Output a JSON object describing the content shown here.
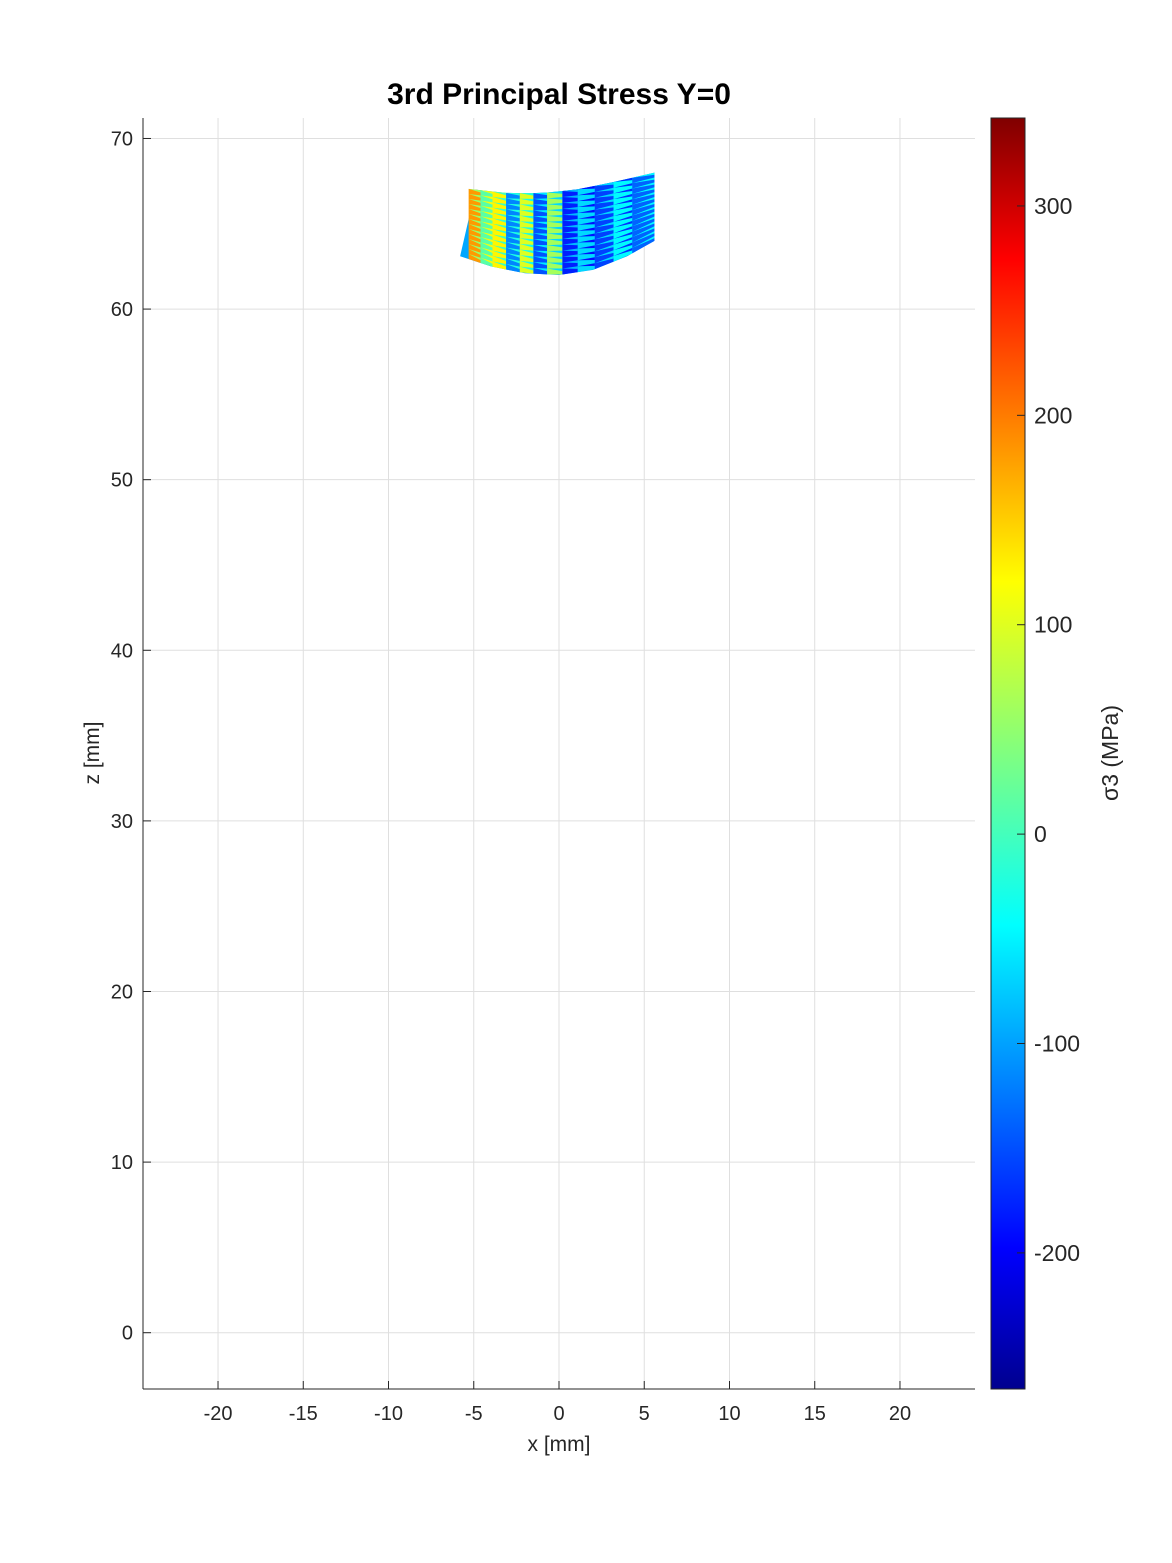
{
  "chart_data": {
    "type": "heatmap",
    "title": "3rd Principal Stress Y=0",
    "xlabel": "x [mm]",
    "ylabel": "z [mm]",
    "xlim": [
      -24.4,
      24.4
    ],
    "ylim": [
      -3.3,
      71.2
    ],
    "xticks": [
      -20,
      -15,
      -10,
      -5,
      0,
      5,
      10,
      15,
      20
    ],
    "yticks": [
      0,
      10,
      20,
      30,
      40,
      50,
      60,
      70
    ],
    "xtick_labels": [
      "-20",
      "-15",
      "-10",
      "-5",
      "0",
      "5",
      "10",
      "15",
      "20"
    ],
    "ytick_labels": [
      "0",
      "10",
      "20",
      "30",
      "40",
      "50",
      "60",
      "70"
    ],
    "grid": true,
    "colormap": "jet",
    "colorbar": {
      "label": "σ3 (MPa)",
      "range": [
        -265,
        342
      ],
      "ticks": [
        -200,
        -100,
        0,
        100,
        200,
        300
      ],
      "tick_labels": [
        "-200",
        "-100",
        "0",
        "100",
        "200",
        "300"
      ]
    },
    "region": {
      "top_edge": [
        [
          -4.9,
          67.0
        ],
        [
          -3.0,
          66.8
        ],
        [
          -1.0,
          66.8
        ],
        [
          1.0,
          67.0
        ],
        [
          3.0,
          67.4
        ],
        [
          4.3,
          67.7
        ]
      ],
      "bottom_edge": [
        [
          -5.8,
          63.1
        ],
        [
          -4.0,
          62.5
        ],
        [
          -2.0,
          62.1
        ],
        [
          0.0,
          62.0
        ],
        [
          2.0,
          62.3
        ],
        [
          4.0,
          63.1
        ],
        [
          5.6,
          64.0
        ]
      ],
      "columns": [
        {
          "x": [
            -5.3,
            -4.6
          ],
          "sigma3": 175
        },
        {
          "x": [
            -4.6,
            -3.9
          ],
          "sigma3": 15
        },
        {
          "x": [
            -3.9,
            -3.1
          ],
          "sigma3": 120
        },
        {
          "x": [
            -3.1,
            -2.3
          ],
          "sigma3": -110
        },
        {
          "x": [
            -2.3,
            -1.5
          ],
          "sigma3": 95
        },
        {
          "x": [
            -1.5,
            -0.7
          ],
          "sigma3": -140
        },
        {
          "x": [
            -0.7,
            0.2
          ],
          "sigma3": 60
        },
        {
          "x": [
            0.2,
            1.1
          ],
          "sigma3": -170
        },
        {
          "x": [
            1.1,
            2.1
          ],
          "sigma3": -60
        },
        {
          "x": [
            2.1,
            3.2
          ],
          "sigma3": -150
        },
        {
          "x": [
            3.2,
            4.3
          ],
          "sigma3": -40
        },
        {
          "x": [
            4.3,
            5.6
          ],
          "sigma3": -130
        }
      ]
    }
  }
}
